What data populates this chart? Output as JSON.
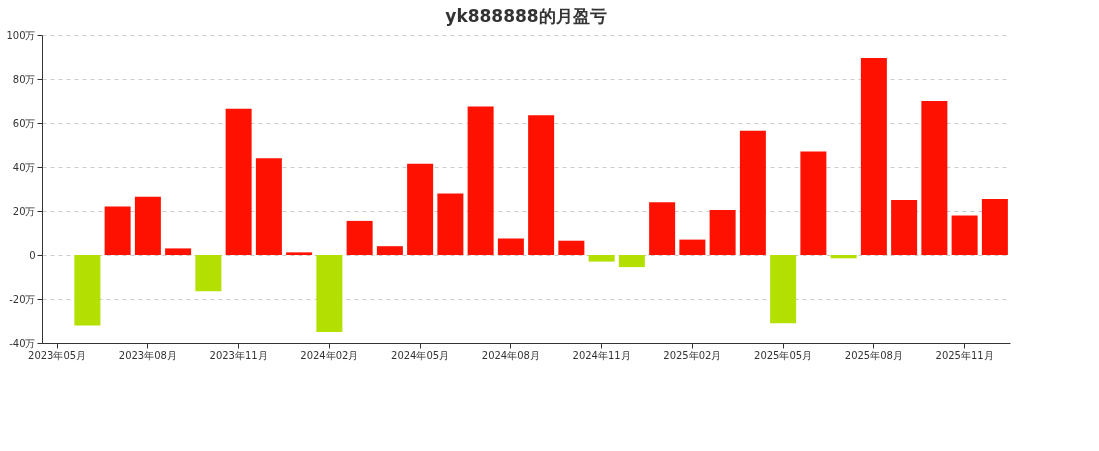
{
  "chart_data": {
    "type": "bar",
    "title": "yk888888的月盈亏",
    "categories": [
      "2023年05月",
      null,
      null,
      "2023年08月",
      null,
      null,
      "2023年11月",
      null,
      null,
      "2024年02月",
      null,
      null,
      "2024年05月",
      null,
      null,
      "2024年08月",
      null,
      null,
      "2024年11月",
      null,
      null,
      "2025年02月",
      null,
      null,
      "2025年05月",
      null,
      null,
      "2025年08月",
      null,
      null,
      "2025年11月",
      null
    ],
    "values": [
      null,
      -32,
      22,
      26.5,
      3,
      -16.5,
      66.5,
      44,
      1.2,
      -35,
      15.5,
      4,
      41.5,
      28,
      67.5,
      7.5,
      63.5,
      6.5,
      -3,
      -5.5,
      24,
      7,
      20.5,
      56.5,
      -31,
      47,
      -1.5,
      89.5,
      25,
      70,
      18,
      25.5
    ],
    "colors": [
      null,
      "#b3e000",
      "#ff1100",
      "#ff1100",
      "#ff1100",
      "#b3e000",
      "#ff1100",
      "#ff1100",
      "#ff1100",
      "#b3e000",
      "#ff1100",
      "#ff1100",
      "#ff1100",
      "#ff1100",
      "#ff1100",
      "#ff1100",
      "#ff1100",
      "#ff1100",
      "#b3e000",
      "#b3e000",
      "#ff1100",
      "#ff1100",
      "#ff1100",
      "#ff1100",
      "#b3e000",
      "#ff1100",
      "#b3e000",
      "#ff1100",
      "#ff1100",
      "#ff1100",
      "#ff1100",
      "#ff1100"
    ],
    "ylim": [
      -40,
      100
    ],
    "yticks": [
      {
        "value": -40,
        "label": "-40万"
      },
      {
        "value": -20,
        "label": "-20万"
      },
      {
        "value": 0,
        "label": "0"
      },
      {
        "value": 20,
        "label": "20万"
      },
      {
        "value": 40,
        "label": "40万"
      },
      {
        "value": 60,
        "label": "60万"
      },
      {
        "value": 80,
        "label": "80万"
      },
      {
        "value": 100,
        "label": "100万"
      }
    ],
    "grid": "y"
  }
}
